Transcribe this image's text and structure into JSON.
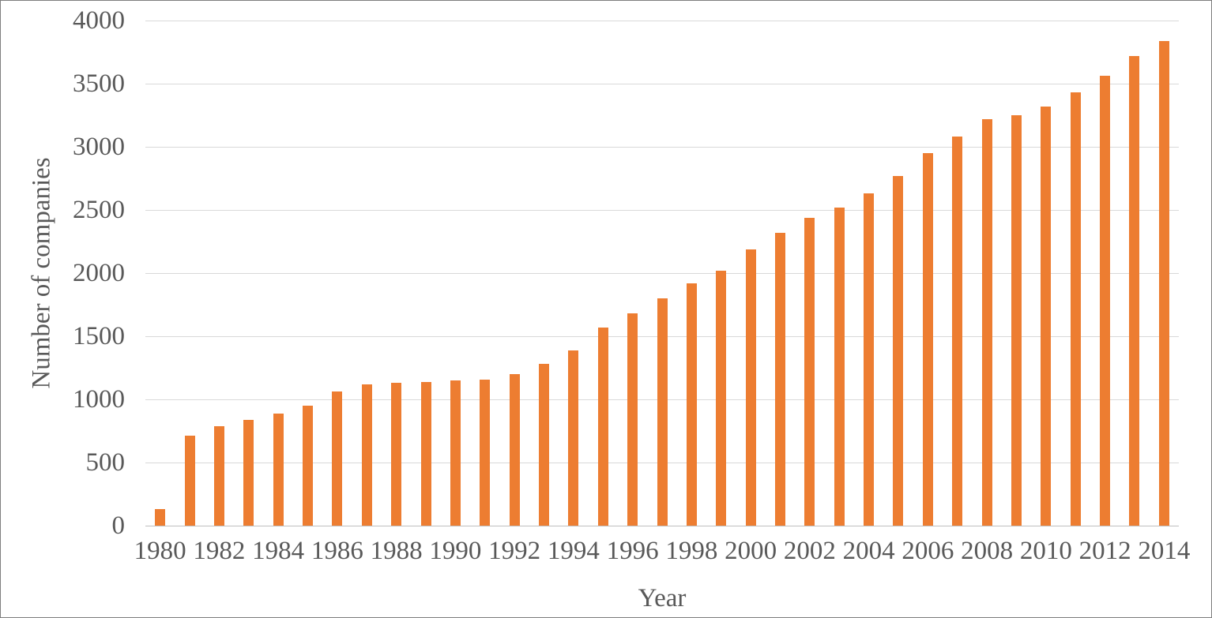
{
  "chart_data": {
    "type": "bar",
    "title": "",
    "xlabel": "Year",
    "ylabel": "Number of companies",
    "categories": [
      "1980",
      "1981",
      "1982",
      "1983",
      "1984",
      "1985",
      "1986",
      "1987",
      "1988",
      "1989",
      "1990",
      "1991",
      "1992",
      "1993",
      "1994",
      "1995",
      "1996",
      "1997",
      "1998",
      "1999",
      "2000",
      "2001",
      "2002",
      "2003",
      "2004",
      "2005",
      "2006",
      "2007",
      "2008",
      "2009",
      "2010",
      "2011",
      "2012",
      "2013",
      "2014"
    ],
    "values": [
      130,
      710,
      790,
      840,
      890,
      950,
      1060,
      1120,
      1130,
      1140,
      1150,
      1155,
      1200,
      1280,
      1390,
      1570,
      1680,
      1800,
      1920,
      2020,
      2190,
      2320,
      2440,
      2520,
      2630,
      2770,
      2950,
      3080,
      3220,
      3250,
      3320,
      3430,
      3560,
      3720,
      3840
    ],
    "y_ticks": [
      0,
      500,
      1000,
      1500,
      2000,
      2500,
      3000,
      3500,
      4000
    ],
    "ylim": [
      0,
      4000
    ],
    "x_tick_step": 2,
    "grid": true,
    "legend_position": "none",
    "colors": {
      "bar": "#ED7D31",
      "text": "#595959",
      "gridline": "#D9D9D9",
      "axis_line": "#BFBFBF",
      "frame_border": "#7F7F7F",
      "background": "#FFFFFF"
    }
  }
}
